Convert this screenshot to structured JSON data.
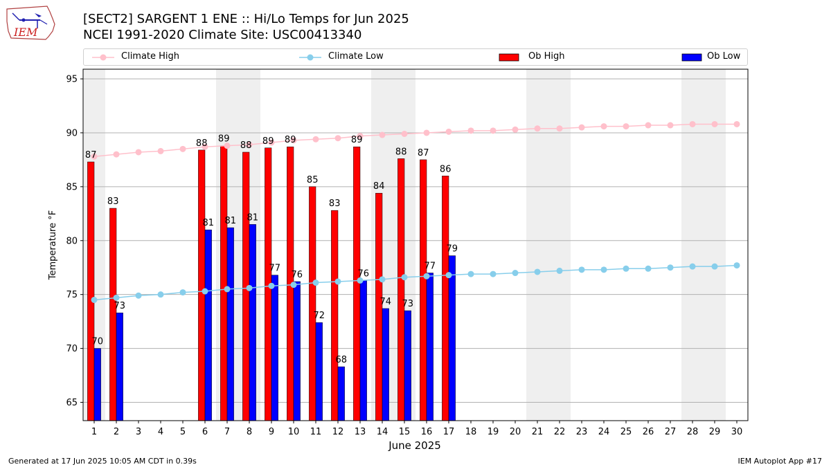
{
  "header": {
    "title": "[SECT2] SARGENT 1 ENE :: Hi/Lo Temps for Jun 2025",
    "subtitle": "NCEI 1991-2020 Climate Site: USC00413340",
    "logo_text": "IEM"
  },
  "legend": {
    "items": [
      {
        "label": "Climate High",
        "kind": "line",
        "color": "#ffc0cb"
      },
      {
        "label": "Climate Low",
        "kind": "line",
        "color": "#87ceeb"
      },
      {
        "label": "Ob High",
        "kind": "bar",
        "color": "#ff0000"
      },
      {
        "label": "Ob Low",
        "kind": "bar",
        "color": "#0000ff"
      }
    ],
    "placement": "top, horizontal above plot"
  },
  "footer": {
    "left": "Generated at 17 Jun 2025 10:05 AM CDT in 0.39s",
    "right": "IEM Autoplot App #17"
  },
  "chart_data": {
    "type": "bar",
    "title": "",
    "xlabel": "June 2025",
    "ylabel": "Temperature °F",
    "x": [
      1,
      2,
      3,
      4,
      5,
      6,
      7,
      8,
      9,
      10,
      11,
      12,
      13,
      14,
      15,
      16,
      17,
      18,
      19,
      20,
      21,
      22,
      23,
      24,
      25,
      26,
      27,
      28,
      29,
      30
    ],
    "ylim": [
      63.3,
      95.9
    ],
    "yticks": [
      65,
      70,
      75,
      80,
      85,
      90,
      95
    ],
    "grid": "horizontal",
    "weekend_shading": [
      [
        1,
        1
      ],
      [
        7,
        8
      ],
      [
        14,
        15
      ],
      [
        21,
        22
      ],
      [
        28,
        29
      ]
    ],
    "series": [
      {
        "name": "Ob High",
        "kind": "bar",
        "color": "#ff0000",
        "values": [
          87.3,
          83.0,
          null,
          null,
          null,
          88.4,
          88.8,
          88.2,
          88.6,
          88.7,
          85.0,
          82.8,
          88.7,
          84.4,
          87.6,
          87.5,
          86.0,
          null,
          null,
          null,
          null,
          null,
          null,
          null,
          null,
          null,
          null,
          null,
          null,
          null
        ],
        "labels": [
          "87",
          "83",
          null,
          null,
          null,
          "88",
          "89",
          "88",
          "89",
          "89",
          "85",
          "83",
          "89",
          "84",
          "88",
          "87",
          "86",
          null,
          null,
          null,
          null,
          null,
          null,
          null,
          null,
          null,
          null,
          null,
          null,
          null
        ]
      },
      {
        "name": "Ob Low",
        "kind": "bar",
        "color": "#0000ff",
        "values": [
          70.0,
          73.3,
          null,
          null,
          null,
          81.0,
          81.2,
          81.5,
          76.8,
          76.2,
          72.4,
          68.3,
          76.3,
          73.7,
          73.5,
          77.0,
          78.6,
          null,
          null,
          null,
          null,
          null,
          null,
          null,
          null,
          null,
          null,
          null,
          null,
          null
        ],
        "labels": [
          "70",
          "73",
          null,
          null,
          null,
          "81",
          "81",
          "81",
          "77",
          "76",
          "72",
          "68",
          "76",
          "74",
          "73",
          "77",
          "79",
          null,
          null,
          null,
          null,
          null,
          null,
          null,
          null,
          null,
          null,
          null,
          null,
          null
        ]
      },
      {
        "name": "Climate High",
        "kind": "line",
        "color": "#ffc0cb",
        "values": [
          87.8,
          88.0,
          88.2,
          88.3,
          88.5,
          88.7,
          88.8,
          88.9,
          89.1,
          89.3,
          89.4,
          89.5,
          89.7,
          89.8,
          89.9,
          90.0,
          90.1,
          90.2,
          90.2,
          90.3,
          90.4,
          90.4,
          90.5,
          90.6,
          90.6,
          90.7,
          90.7,
          90.8,
          90.8,
          90.8
        ]
      },
      {
        "name": "Climate Low",
        "kind": "line",
        "color": "#87ceeb",
        "values": [
          74.5,
          74.7,
          74.9,
          75.0,
          75.2,
          75.3,
          75.5,
          75.6,
          75.8,
          75.9,
          76.1,
          76.2,
          76.3,
          76.4,
          76.6,
          76.7,
          76.8,
          76.9,
          76.9,
          77.0,
          77.1,
          77.2,
          77.3,
          77.3,
          77.4,
          77.4,
          77.5,
          77.6,
          77.6,
          77.7
        ]
      }
    ]
  }
}
